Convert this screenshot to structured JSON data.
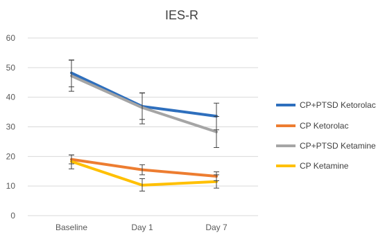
{
  "chart_data": {
    "type": "line",
    "title": "IES-R",
    "xlabel": "",
    "ylabel": "",
    "categories": [
      "Baseline",
      "Day 1",
      "Day 7"
    ],
    "ylim": [
      0,
      60
    ],
    "yticks": [
      0,
      10,
      20,
      30,
      40,
      50,
      60
    ],
    "grid": true,
    "legend_position": "right",
    "series": [
      {
        "name": "CP+PTSD Ketorolac",
        "color": "#2e6fbd",
        "values": [
          48.2,
          36.9,
          33.6
        ],
        "err_low": [
          43.5,
          32.5,
          29.0
        ],
        "err_high": [
          52.6,
          41.4,
          38.0
        ]
      },
      {
        "name": "CP Ketorolac",
        "color": "#ed7d31",
        "values": [
          19.0,
          15.5,
          13.3
        ],
        "err_low": [
          17.5,
          13.8,
          11.8
        ],
        "err_high": [
          20.5,
          17.2,
          14.8
        ]
      },
      {
        "name": "CP+PTSD Ketamine",
        "color": "#a5a5a5",
        "values": [
          47.2,
          36.5,
          28.3
        ],
        "err_low": [
          42.0,
          31.0,
          23.0
        ],
        "err_high": [
          52.5,
          41.5,
          33.5
        ]
      },
      {
        "name": "CP Ketamine",
        "color": "#ffc000",
        "values": [
          18.3,
          10.3,
          11.5
        ],
        "err_low": [
          15.8,
          8.3,
          9.3
        ],
        "err_high": [
          20.5,
          12.5,
          13.8
        ]
      }
    ]
  }
}
